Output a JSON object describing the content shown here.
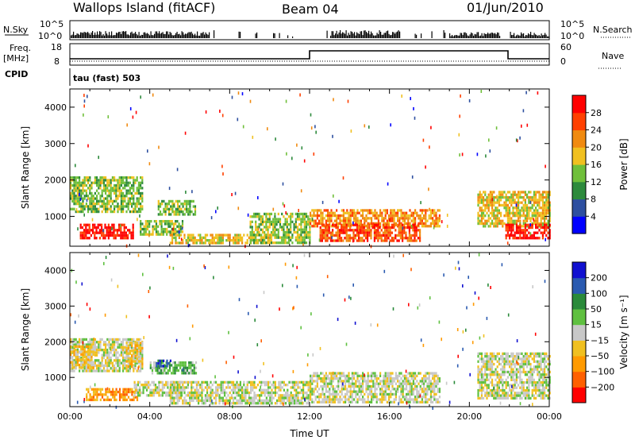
{
  "header": {
    "station": "Wallops Island (fitACF)",
    "beam": "Beam 04",
    "date": "01/Jun/2010"
  },
  "status_panels": {
    "nsky_label": "N.Sky",
    "nsky_ticks": [
      "10^5",
      "10^0"
    ],
    "nsearch_label": "N.Search",
    "nsearch_ticks": [
      "10^5",
      "10^0"
    ],
    "freq_label": "Freq.",
    "freq_unit": "[MHz]",
    "freq_ticks": [
      "18",
      "8"
    ],
    "nave_label": "Nave",
    "nave_ticks": [
      "60",
      "0"
    ],
    "cpid_label": "CPID",
    "cpid_value": "tau (fast) 503"
  },
  "colors": {
    "power_scale": [
      "#0000ff",
      "#2d4fa0",
      "#2d8a3c",
      "#6fbf3a",
      "#f0c020",
      "#f08a10",
      "#ff4000",
      "#ff0000"
    ],
    "velocity_scale": [
      "#ff0000",
      "#ff6000",
      "#ff9a00",
      "#f0c020",
      "#c8c8c8",
      "#5fc040",
      "#2a8a3a",
      "#2a5ab0",
      "#1010d0"
    ]
  },
  "chart_data": [
    {
      "type": "heatmap",
      "name": "power",
      "xlabel": "",
      "ylabel": "Slant Range [km]",
      "xlim": [
        0,
        24
      ],
      "ylim": [
        180,
        4500
      ],
      "yticks": [
        "1000",
        "2000",
        "3000",
        "4000"
      ],
      "colorbar_label": "Power [dB]",
      "colorbar_ticks": [
        "4",
        "8",
        "12",
        "16",
        "20",
        "24",
        "28"
      ],
      "regions": [
        {
          "t0": 0.0,
          "t1": 3.6,
          "r0": 1100,
          "r1": 2100,
          "level": 3
        },
        {
          "t0": 0.5,
          "t1": 3.2,
          "r0": 420,
          "r1": 800,
          "level": 7
        },
        {
          "t0": 3.5,
          "t1": 5.6,
          "r0": 500,
          "r1": 900,
          "level": 3
        },
        {
          "t0": 4.4,
          "t1": 6.3,
          "r0": 1050,
          "r1": 1450,
          "level": 3
        },
        {
          "t0": 5.0,
          "t1": 10.0,
          "r0": 250,
          "r1": 520,
          "level": 4
        },
        {
          "t0": 9.0,
          "t1": 12.0,
          "r0": 300,
          "r1": 1100,
          "level": 3
        },
        {
          "t0": 12.0,
          "t1": 18.5,
          "r0": 700,
          "r1": 1200,
          "level": 5
        },
        {
          "t0": 12.5,
          "t1": 17.5,
          "r0": 300,
          "r1": 800,
          "level": 6
        },
        {
          "t0": 20.4,
          "t1": 24.0,
          "r0": 700,
          "r1": 1700,
          "level": 4
        },
        {
          "t0": 21.8,
          "t1": 24.0,
          "r0": 400,
          "r1": 800,
          "level": 7
        }
      ]
    },
    {
      "type": "heatmap",
      "name": "velocity",
      "xlabel": "Time UT",
      "ylabel": "Slant Range [km]",
      "xlim": [
        0,
        24
      ],
      "ylim": [
        180,
        4500
      ],
      "xticks": [
        "00:00",
        "04:00",
        "08:00",
        "12:00",
        "16:00",
        "20:00",
        "00:00"
      ],
      "yticks": [
        "1000",
        "2000",
        "3000",
        "4000"
      ],
      "colorbar_label": "Velocity [m s⁻¹]",
      "colorbar_ticks": [
        "200",
        "100",
        "50",
        "15",
        "−15",
        "−50",
        "−100",
        "−200"
      ],
      "regions": [
        {
          "t0": 0.0,
          "t1": 3.6,
          "r0": 1200,
          "r1": 2100,
          "level": 4
        },
        {
          "t0": 0.0,
          "t1": 1.2,
          "r0": 1300,
          "r1": 1900,
          "level": 3
        },
        {
          "t0": 2.8,
          "t1": 3.6,
          "r0": 1300,
          "r1": 2000,
          "level": 3
        },
        {
          "t0": 0.8,
          "t1": 3.4,
          "r0": 400,
          "r1": 700,
          "level": 2
        },
        {
          "t0": 4.0,
          "t1": 6.3,
          "r0": 1150,
          "r1": 1450,
          "level": 5
        },
        {
          "t0": 4.3,
          "t1": 5.0,
          "r0": 1350,
          "r1": 1500,
          "level": 7
        },
        {
          "t0": 3.2,
          "t1": 5.6,
          "r0": 500,
          "r1": 900,
          "level": 4
        },
        {
          "t0": 5.0,
          "t1": 12.0,
          "r0": 250,
          "r1": 900,
          "level": 4
        },
        {
          "t0": 12.0,
          "t1": 18.5,
          "r0": 300,
          "r1": 1150,
          "level": 4
        },
        {
          "t0": 20.4,
          "t1": 24.0,
          "r0": 400,
          "r1": 1700,
          "level": 4
        }
      ]
    }
  ]
}
